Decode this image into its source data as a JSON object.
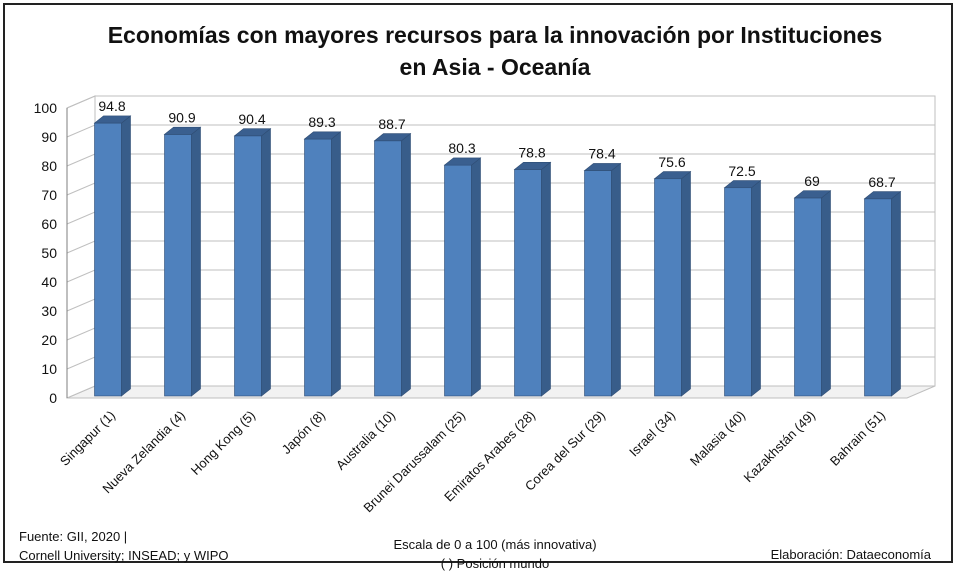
{
  "chart_data": {
    "type": "bar",
    "title_line1": "Economías con mayores recursos para la innovación por Instituciones",
    "title_line2": "en Asia - Oceanía",
    "categories": [
      "Singapur (1)",
      "Nueva Zelandia (4)",
      "Hong Kong (5)",
      "Japón (8)",
      "Australia (10)",
      "Brunei Darussalam (25)",
      "Emiratos Arabes (28)",
      "Corea del Sur (29)",
      "Israel (34)",
      "Malasia (40)",
      "Kazakhstán (49)",
      "Bahrain (51)"
    ],
    "values": [
      94.8,
      90.9,
      90.4,
      89.3,
      88.7,
      80.3,
      78.8,
      78.4,
      75.6,
      72.5,
      69,
      68.7
    ],
    "value_labels": [
      "94.8",
      "90.9",
      "90.4",
      "89.3",
      "88.7",
      "80.3",
      "78.8",
      "78.4",
      "75.6",
      "72.5",
      "69",
      "68.7"
    ],
    "ylim": [
      0,
      100
    ],
    "yticks": [
      0,
      10,
      20,
      30,
      40,
      50,
      60,
      70,
      80,
      90,
      100
    ],
    "grid": true,
    "bar_color": "#4f81bd",
    "bar_side_color": "#385d8a",
    "bar_top_color": "#3a5f8f"
  },
  "footer": {
    "source_line1": "Fuente:  GII, 2020 |",
    "source_line2": "Cornell University; INSEAD; y WIPO",
    "scale_line1": "Escala de 0 a 100 (más innovativa)",
    "scale_line2": "( ) Posición mundo",
    "credit": "Elaboración: Dataeconomía"
  }
}
